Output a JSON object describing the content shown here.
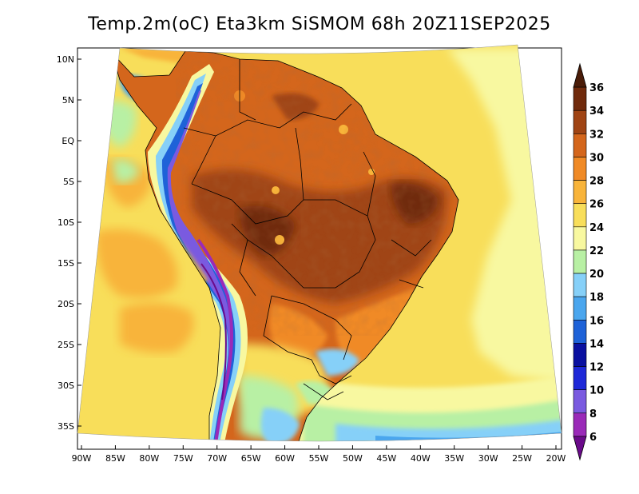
{
  "title": "Temp.2m(oC) Eta3km SiSMOM 68h 20Z11SEP2025",
  "map": {
    "region": "South America",
    "variable": "2 m air temperature",
    "units": "oC",
    "lat_range": [
      -38,
      12
    ],
    "lon_range": [
      -90,
      -20
    ]
  },
  "axes": {
    "lat_ticks": [
      {
        "label": "10N",
        "value": 10
      },
      {
        "label": "5N",
        "value": 5
      },
      {
        "label": "EQ",
        "value": 0
      },
      {
        "label": "5S",
        "value": -5
      },
      {
        "label": "10S",
        "value": -10
      },
      {
        "label": "15S",
        "value": -15
      },
      {
        "label": "20S",
        "value": -20
      },
      {
        "label": "25S",
        "value": -25
      },
      {
        "label": "30S",
        "value": -30
      },
      {
        "label": "35S",
        "value": -35
      }
    ],
    "lon_ticks": [
      {
        "label": "90W",
        "value": -90
      },
      {
        "label": "85W",
        "value": -85
      },
      {
        "label": "80W",
        "value": -80
      },
      {
        "label": "75W",
        "value": -75
      },
      {
        "label": "70W",
        "value": -70
      },
      {
        "label": "65W",
        "value": -65
      },
      {
        "label": "60W",
        "value": -60
      },
      {
        "label": "55W",
        "value": -55
      },
      {
        "label": "50W",
        "value": -50
      },
      {
        "label": "45W",
        "value": -45
      },
      {
        "label": "40W",
        "value": -40
      },
      {
        "label": "35W",
        "value": -35
      },
      {
        "label": "30W",
        "value": -30
      },
      {
        "label": "25W",
        "value": -25
      },
      {
        "label": "20W",
        "value": -20
      }
    ]
  },
  "colorbar": {
    "levels": [
      "6",
      "8",
      "10",
      "12",
      "14",
      "16",
      "18",
      "20",
      "22",
      "24",
      "26",
      "28",
      "30",
      "32",
      "34",
      "36"
    ],
    "colors": [
      "#6a0a8a",
      "#9a2ab8",
      "#7a5ae0",
      "#1e28d8",
      "#0a10a0",
      "#1e62d8",
      "#4aa6ee",
      "#86d0f8",
      "#b8f0a4",
      "#f8f8a0",
      "#f8de5a",
      "#f8b43a",
      "#f08a26",
      "#d4661c",
      "#a04414",
      "#702a0c",
      "#4a1c08"
    ]
  }
}
